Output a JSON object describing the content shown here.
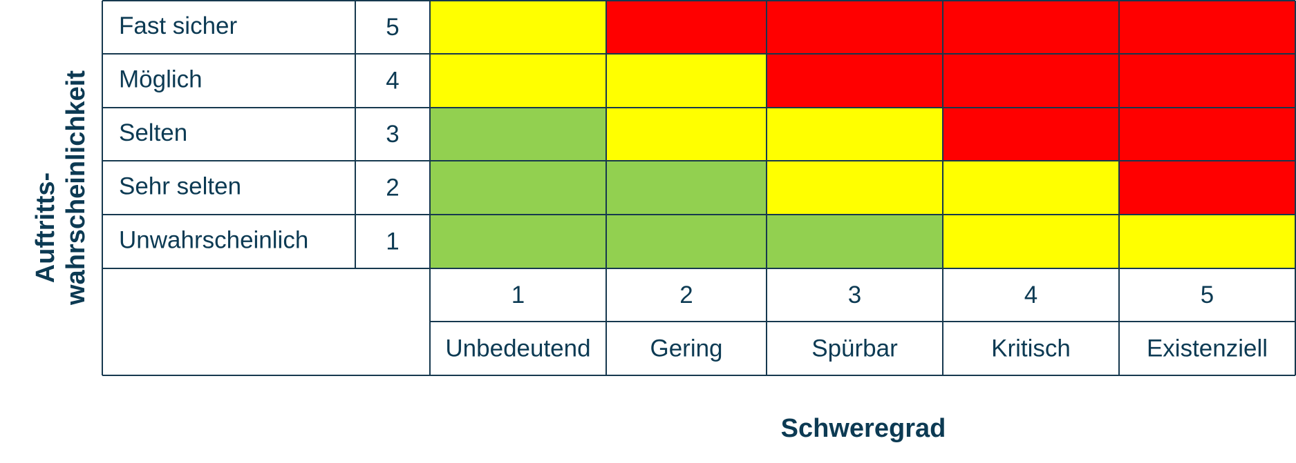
{
  "chart_data": {
    "type": "heatmap",
    "title": "",
    "xlabel": "Schweregrad",
    "ylabel_lines": [
      "Auftritts-",
      "wahrscheinlichkeit"
    ],
    "x": {
      "scores": [
        "1",
        "2",
        "3",
        "4",
        "5"
      ],
      "labels": [
        "Unbedeutend",
        "Gering",
        "Spürbar",
        "Kritisch",
        "Existenziell"
      ]
    },
    "y": {
      "scores": [
        "5",
        "4",
        "3",
        "2",
        "1"
      ],
      "labels": [
        "Fast sicher",
        "Möglich",
        "Selten",
        "Sehr selten",
        "Unwahrscheinlich"
      ]
    },
    "levels": {
      "low": "#92d050",
      "medium": "#ffff00",
      "high": "#ff0000"
    },
    "cells": [
      [
        "medium",
        "high",
        "high",
        "high",
        "high"
      ],
      [
        "medium",
        "medium",
        "high",
        "high",
        "high"
      ],
      [
        "low",
        "medium",
        "medium",
        "high",
        "high"
      ],
      [
        "low",
        "low",
        "medium",
        "medium",
        "high"
      ],
      [
        "low",
        "low",
        "low",
        "medium",
        "medium"
      ]
    ]
  }
}
